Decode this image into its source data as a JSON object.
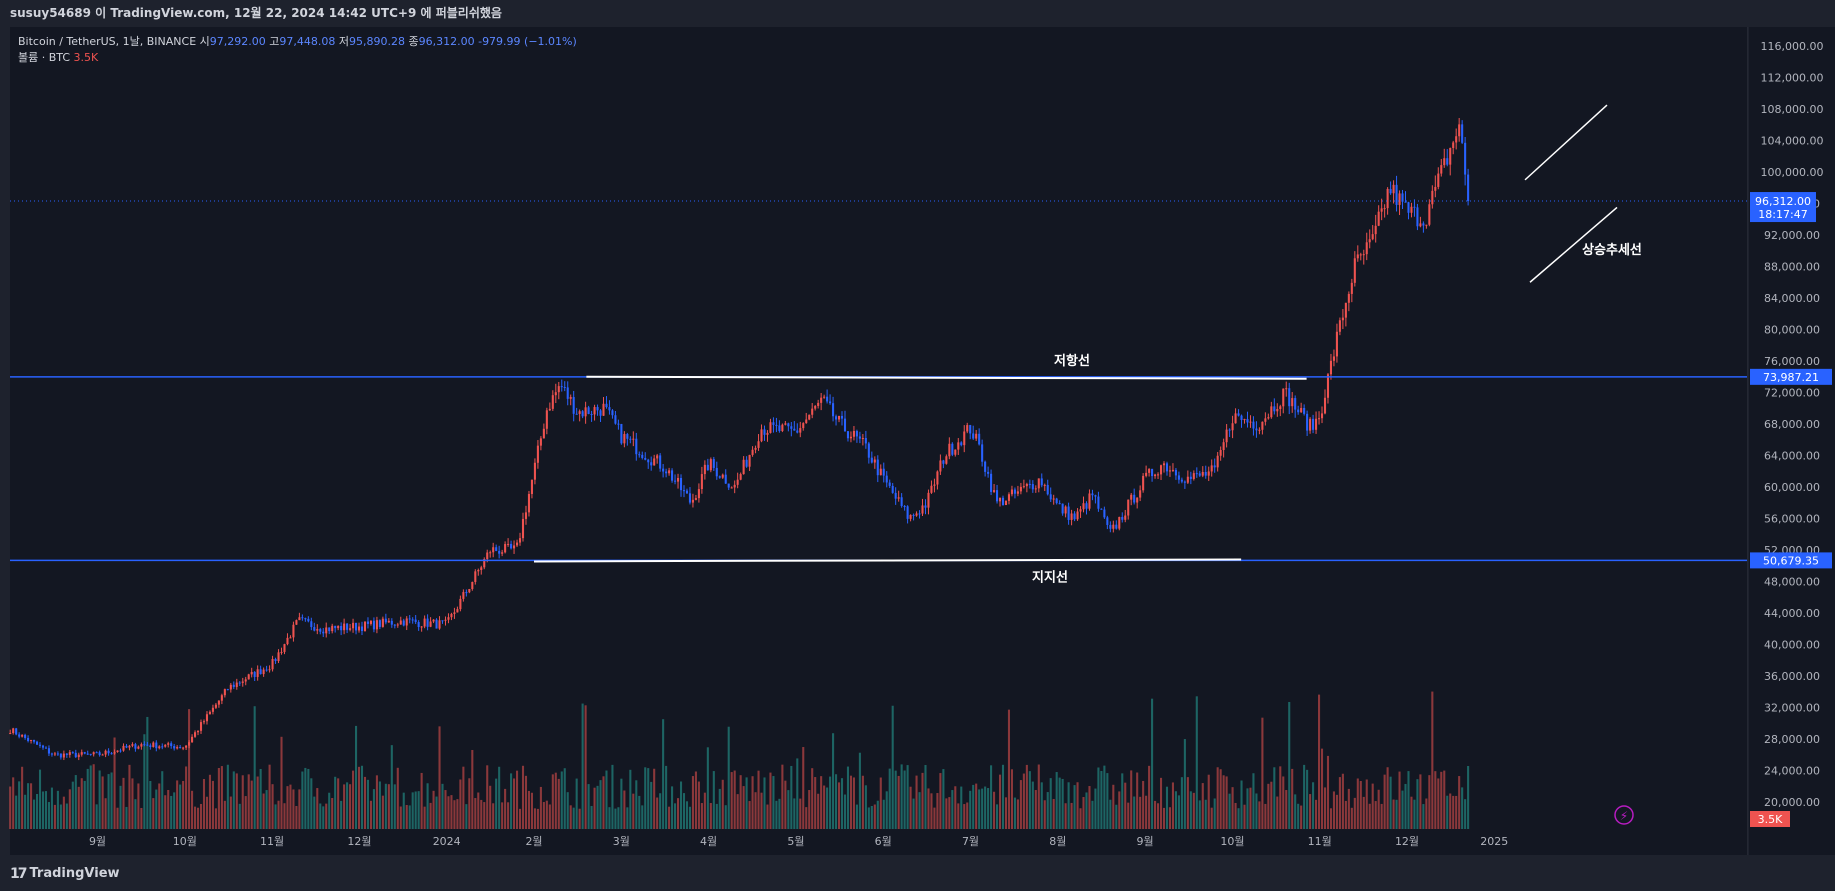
{
  "header": {
    "publish_text": "susuy54689 이 TradingView.com, 12월 22, 2024 14:42 UTC+9 에 퍼블리쉬했음"
  },
  "legend": {
    "symbol": "Bitcoin / TetherUS, 1날, BINANCE",
    "open_label": "시",
    "open": "97,292.00",
    "high_label": "고",
    "high": "97,448.08",
    "low_label": "저",
    "low": "95,890.28",
    "close_label": "종",
    "close": "96,312.00",
    "change": "-979.99 (−1.01%)",
    "volume_label": "볼륨 · BTC",
    "volume": "3.5K"
  },
  "footer": {
    "logo_icon": "tradingview-logo-icon",
    "brand": "TradingView"
  },
  "colors": {
    "background": "#1e222d",
    "pane": "#131722",
    "up": "#ef5350",
    "down": "#2962ff",
    "vol_up": "#ef5350",
    "vol_down": "#26a69a",
    "hline": "#2962ff",
    "annotation": "#ffffff"
  },
  "chart_data": {
    "type": "candlestick",
    "title": "",
    "y_axis": {
      "ylim": [
        18000,
        118000
      ],
      "ticks": [
        "116,000.00",
        "112,000.00",
        "108,000.00",
        "104,000.00",
        "100,000.00",
        "96,000.00",
        "92,000.00",
        "88,000.00",
        "84,000.00",
        "80,000.00",
        "76,000.00",
        "72,000.00",
        "68,000.00",
        "64,000.00",
        "60,000.00",
        "56,000.00",
        "52,000.00",
        "48,000.00",
        "44,000.00",
        "40,000.00",
        "36,000.00",
        "32,000.00",
        "28,000.00",
        "24,000.00",
        "20,000.00"
      ],
      "tick_values": [
        116000,
        112000,
        108000,
        104000,
        100000,
        96000,
        92000,
        88000,
        84000,
        80000,
        76000,
        72000,
        68000,
        64000,
        60000,
        56000,
        52000,
        48000,
        44000,
        40000,
        36000,
        32000,
        28000,
        24000,
        20000
      ]
    },
    "x_axis": {
      "labels": [
        "9월",
        "10월",
        "11월",
        "12월",
        "2024",
        "2월",
        "3월",
        "4월",
        "5월",
        "6월",
        "7월",
        "8월",
        "9월",
        "10월",
        "11월",
        "12월",
        "2025"
      ],
      "label_months": [
        1,
        2,
        3,
        4,
        5,
        6,
        7,
        8,
        9,
        10,
        11,
        12,
        13,
        14,
        15,
        16,
        17
      ]
    },
    "price_series": {
      "name": "Bitcoin / TetherUS",
      "anchor_months": [
        0,
        0.5,
        1,
        1.5,
        2,
        2.5,
        3,
        3.3,
        3.6,
        4,
        4.5,
        5,
        5.5,
        5.8,
        6,
        6.15,
        6.3,
        6.5,
        6.8,
        7,
        7.3,
        7.5,
        7.8,
        8,
        8.3,
        8.6,
        9,
        9.3,
        9.5,
        9.8,
        10,
        10.3,
        10.5,
        10.7,
        11,
        11.1,
        11.3,
        11.5,
        11.8,
        12,
        12.2,
        12.4,
        12.6,
        12.8,
        13,
        13.2,
        13.5,
        13.8,
        14,
        14.3,
        14.6,
        14.9,
        15,
        15.2,
        15.4,
        15.6,
        15.8,
        16,
        16.2,
        16.4,
        16.6,
        16.7
      ],
      "anchor_prices": [
        29200,
        26000,
        26000,
        27300,
        27000,
        34500,
        37500,
        43000,
        42000,
        42300,
        43000,
        42500,
        52000,
        52000,
        62000,
        70000,
        73000,
        69500,
        70000,
        66500,
        64000,
        62500,
        58000,
        63000,
        60000,
        67500,
        67000,
        71000,
        68000,
        65000,
        61000,
        56000,
        58000,
        64000,
        67500,
        65000,
        58000,
        59000,
        61000,
        57500,
        56000,
        59000,
        54000,
        57500,
        61000,
        63000,
        61000,
        62000,
        69000,
        68000,
        72000,
        67500,
        69000,
        79000,
        88000,
        91000,
        98000,
        95000,
        94000,
        100000,
        106000,
        96312
      ]
    },
    "levels": [
      {
        "name": "저항선",
        "value": 73987.21,
        "label": "73,987.21"
      },
      {
        "name": "지지선",
        "value": 50679.35,
        "label": "50,679.35"
      }
    ],
    "current_price": {
      "value": 96312.0,
      "label": "96,312.00",
      "countdown": "18:17:47"
    },
    "volume_badge": "3.5K",
    "trend_annotation": "상승추세선",
    "resistance_annotation": "저항선",
    "support_annotation": "지지선"
  }
}
